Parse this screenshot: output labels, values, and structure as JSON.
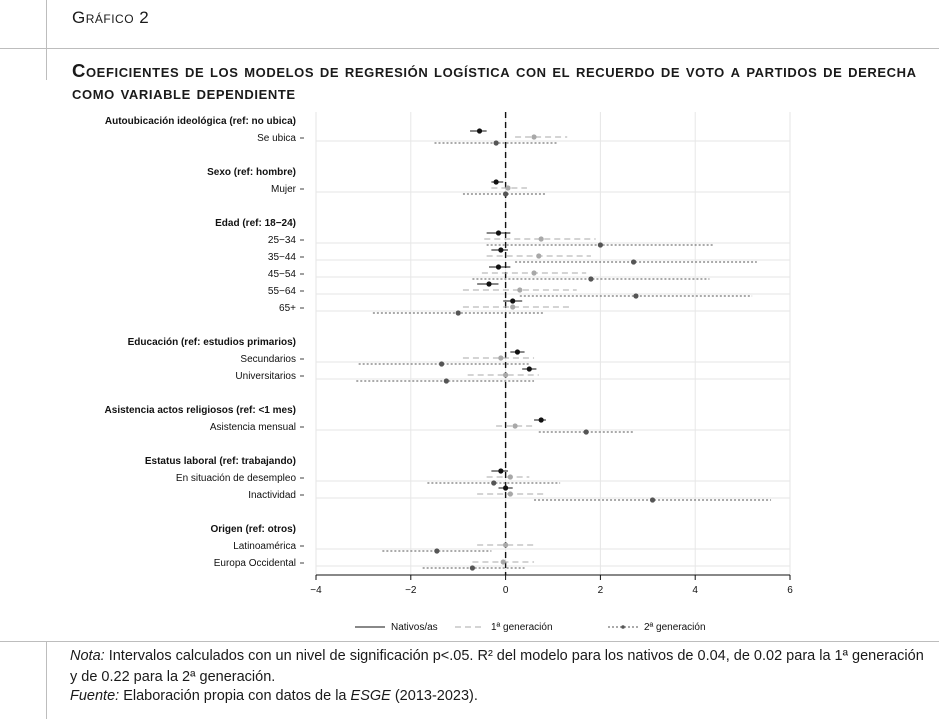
{
  "header": {
    "figure_label": "Gráfico 2",
    "title": "Coeficientes de los modelos de regresión logística con el recuerdo de voto a partidos de derecha como variable dependiente"
  },
  "footer": {
    "note_label": "Nota:",
    "note_text": " Intervalos calculados con un nivel de significación p<.05. R² del modelo para los nativos de 0.04, de 0.02 para la 1ª generación y de 0.22 para la 2ª generación.",
    "source_label": "Fuente:",
    "source_text_1": " Elaboración propia con datos de la ",
    "source_italic": "ESGE",
    "source_text_2": " (2013-2023)."
  },
  "colors": {
    "nativos": "#111111",
    "primera": "#a8a8a8",
    "segunda": "#555555",
    "grid": "#e6e6e6",
    "zero_line": "#111111"
  },
  "chart_data": {
    "type": "scatter",
    "subtype": "coefficient-plot",
    "xlim": [
      -4,
      6
    ],
    "xticks": [
      -4,
      -2,
      0,
      2,
      4,
      6
    ],
    "xtick_labels": [
      "−4",
      "−2",
      "0",
      "2",
      "4",
      "6"
    ],
    "reference_line": 0,
    "grid": true,
    "legend_position": "bottom",
    "series": [
      {
        "name": "Nativos/as",
        "style": "solid",
        "color": "#111111"
      },
      {
        "name": "1ª generación",
        "style": "dashed",
        "color": "#a8a8a8"
      },
      {
        "name": "2ª generación",
        "style": "dotted",
        "color": "#555555"
      }
    ],
    "groups": [
      {
        "heading": "Autoubicación ideológica (ref: no ubica)",
        "rows": [
          {
            "label": "Se ubica",
            "nativos": {
              "coef": -0.55,
              "lo": -0.75,
              "hi": -0.4
            },
            "primera": {
              "coef": 0.6,
              "lo": 0.2,
              "hi": 1.3
            },
            "segunda": {
              "coef": -0.2,
              "lo": -1.5,
              "hi": 1.1
            }
          }
        ]
      },
      {
        "heading": "Sexo (ref: hombre)",
        "rows": [
          {
            "label": "Mujer",
            "nativos": {
              "coef": -0.2,
              "lo": -0.3,
              "hi": -0.05
            },
            "primera": {
              "coef": 0.05,
              "lo": -0.3,
              "hi": 0.45
            },
            "segunda": {
              "coef": 0.0,
              "lo": -0.9,
              "hi": 0.85
            }
          }
        ]
      },
      {
        "heading": "Edad (ref: 18−24)",
        "rows": [
          {
            "label": "25−34",
            "nativos": {
              "coef": -0.15,
              "lo": -0.4,
              "hi": 0.1
            },
            "primera": {
              "coef": 0.75,
              "lo": -0.45,
              "hi": 1.9
            },
            "segunda": {
              "coef": 2.0,
              "lo": -0.4,
              "hi": 4.4
            }
          },
          {
            "label": "35−44",
            "nativos": {
              "coef": -0.1,
              "lo": -0.3,
              "hi": 0.05
            },
            "primera": {
              "coef": 0.7,
              "lo": -0.4,
              "hi": 1.8
            },
            "segunda": {
              "coef": 2.7,
              "lo": 0.2,
              "hi": 5.3
            }
          },
          {
            "label": "45−54",
            "nativos": {
              "coef": -0.15,
              "lo": -0.35,
              "hi": 0.1
            },
            "primera": {
              "coef": 0.6,
              "lo": -0.5,
              "hi": 1.7
            },
            "segunda": {
              "coef": 1.8,
              "lo": -0.7,
              "hi": 4.3
            }
          },
          {
            "label": "55−64",
            "nativos": {
              "coef": -0.35,
              "lo": -0.6,
              "hi": -0.15
            },
            "primera": {
              "coef": 0.3,
              "lo": -0.9,
              "hi": 1.5
            },
            "segunda": {
              "coef": 2.75,
              "lo": 0.3,
              "hi": 5.2
            }
          },
          {
            "label": "65+",
            "nativos": {
              "coef": 0.15,
              "lo": -0.05,
              "hi": 0.35
            },
            "primera": {
              "coef": 0.15,
              "lo": -0.9,
              "hi": 1.4
            },
            "segunda": {
              "coef": -1.0,
              "lo": -2.8,
              "hi": 0.8
            }
          }
        ]
      },
      {
        "heading": "Educación (ref: estudios primarios)",
        "rows": [
          {
            "label": "Secundarios",
            "nativos": {
              "coef": 0.25,
              "lo": 0.1,
              "hi": 0.4
            },
            "primera": {
              "coef": -0.1,
              "lo": -0.9,
              "hi": 0.6
            },
            "segunda": {
              "coef": -1.35,
              "lo": -3.1,
              "hi": 0.5
            }
          },
          {
            "label": "Universitarios",
            "nativos": {
              "coef": 0.5,
              "lo": 0.35,
              "hi": 0.65
            },
            "primera": {
              "coef": 0.0,
              "lo": -0.8,
              "hi": 0.7
            },
            "segunda": {
              "coef": -1.25,
              "lo": -3.15,
              "hi": 0.6
            }
          }
        ]
      },
      {
        "heading": "Asistencia actos religiosos (ref: <1 mes)",
        "rows": [
          {
            "label": "Asistencia mensual",
            "nativos": {
              "coef": 0.75,
              "lo": 0.6,
              "hi": 0.85
            },
            "primera": {
              "coef": 0.2,
              "lo": -0.2,
              "hi": 0.6
            },
            "segunda": {
              "coef": 1.7,
              "lo": 0.7,
              "hi": 2.7
            }
          }
        ]
      },
      {
        "heading": "Estatus laboral (ref: trabajando)",
        "rows": [
          {
            "label": "En situación de desempleo",
            "nativos": {
              "coef": -0.1,
              "lo": -0.3,
              "hi": 0.05
            },
            "primera": {
              "coef": 0.1,
              "lo": -0.4,
              "hi": 0.5
            },
            "segunda": {
              "coef": -0.25,
              "lo": -1.65,
              "hi": 1.15
            }
          },
          {
            "label": "Inactividad",
            "nativos": {
              "coef": 0.0,
              "lo": -0.15,
              "hi": 0.15
            },
            "primera": {
              "coef": 0.1,
              "lo": -0.6,
              "hi": 0.8
            },
            "segunda": {
              "coef": 3.1,
              "lo": 0.6,
              "hi": 5.6
            }
          }
        ]
      },
      {
        "heading": "Origen (ref: otros)",
        "rows": [
          {
            "label": "Latinoamérica",
            "nativos": null,
            "primera": {
              "coef": 0.0,
              "lo": -0.6,
              "hi": 0.6
            },
            "segunda": {
              "coef": -1.45,
              "lo": -2.6,
              "hi": -0.3
            }
          },
          {
            "label": "Europa Occidental",
            "nativos": null,
            "primera": {
              "coef": -0.05,
              "lo": -0.7,
              "hi": 0.6
            },
            "segunda": {
              "coef": -0.7,
              "lo": -1.75,
              "hi": 0.4
            }
          }
        ]
      }
    ]
  }
}
